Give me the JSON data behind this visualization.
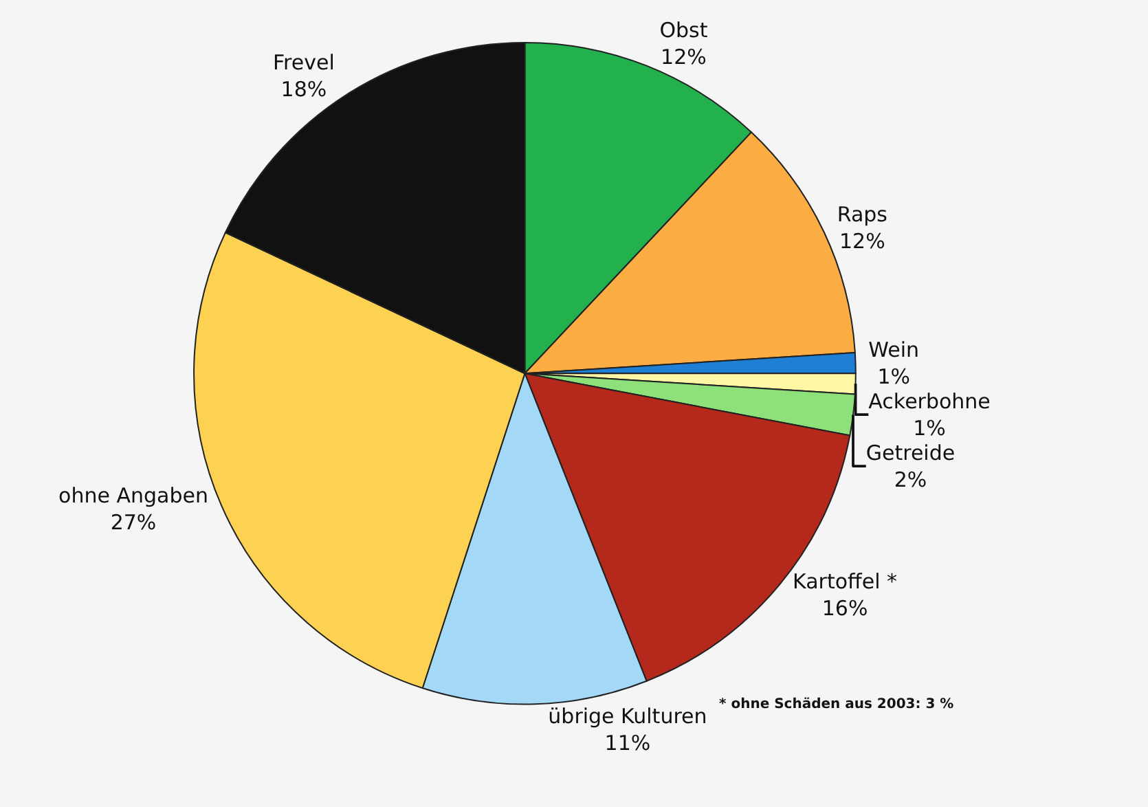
{
  "chart_data": {
    "type": "pie",
    "categories": [
      "Obst",
      "Raps",
      "Wein",
      "Ackerbohne",
      "Getreide",
      "Kartoffel *",
      "übrige Kulturen",
      "ohne Angaben",
      "Frevel"
    ],
    "values": [
      12,
      12,
      1,
      1,
      2,
      16,
      11,
      27,
      18
    ],
    "value_labels": [
      "12%",
      "12%",
      "1%",
      "1%",
      "2%",
      "16%",
      "11%",
      "27%",
      "18%"
    ],
    "colors": [
      "#22b14c",
      "#fbac42",
      "#1f7fd4",
      "#fff6a6",
      "#8de07a",
      "#b5281c",
      "#a3d8f7",
      "#fdd253",
      "#111111"
    ],
    "annotations": [
      {
        "text": "* ohne Schäden aus 2003: 3 %"
      }
    ]
  }
}
